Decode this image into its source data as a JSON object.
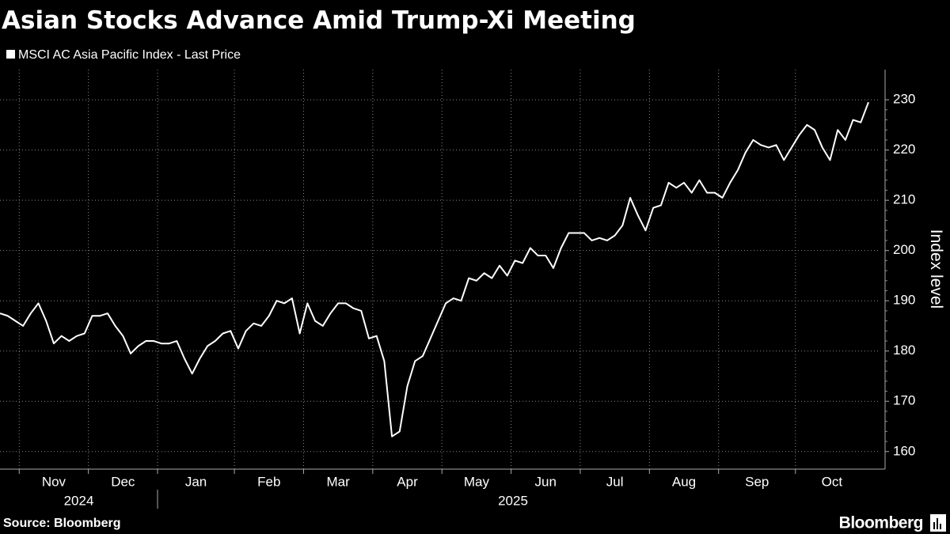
{
  "chart_data": {
    "type": "line",
    "title": "Asian Stocks Advance Amid Trump-Xi Meeting",
    "y_label": "Index level",
    "source": "Source: Bloomberg",
    "brand": "Bloomberg",
    "legend": true,
    "grid": true,
    "ylim": [
      156.5,
      236
    ],
    "yticks": [
      160,
      170,
      180,
      190,
      200,
      210,
      220,
      230
    ],
    "xticks": [
      {
        "value": "2024-11",
        "label": "Nov"
      },
      {
        "value": "2024-12",
        "label": "Dec"
      },
      {
        "value": "2025-01",
        "label": "Jan"
      },
      {
        "value": "2025-02",
        "label": "Feb"
      },
      {
        "value": "2025-03",
        "label": "Mar"
      },
      {
        "value": "2025-04",
        "label": "Apr"
      },
      {
        "value": "2025-05",
        "label": "May"
      },
      {
        "value": "2025-06",
        "label": "Jun"
      },
      {
        "value": "2025-07",
        "label": "Jul"
      },
      {
        "value": "2025-08",
        "label": "Aug"
      },
      {
        "value": "2025-09",
        "label": "Sep"
      },
      {
        "value": "2025-10",
        "label": "Oct"
      }
    ],
    "x_groups": [
      "2024",
      "2025"
    ],
    "x": [
      "2024-10",
      "2024-10",
      "2024-10",
      "2024-11",
      "2024-11",
      "2024-11",
      "2024-11",
      "2024-11",
      "2024-11",
      "2024-11",
      "2024-11",
      "2024-11",
      "2024-12",
      "2024-12",
      "2024-12",
      "2024-12",
      "2024-12",
      "2024-12",
      "2024-12",
      "2024-12",
      "2024-12",
      "2025-01",
      "2025-01",
      "2025-01",
      "2025-01",
      "2025-01",
      "2025-01",
      "2025-01",
      "2025-01",
      "2025-01",
      "2025-01",
      "2025-02",
      "2025-02",
      "2025-02",
      "2025-02",
      "2025-02",
      "2025-02",
      "2025-02",
      "2025-02",
      "2025-02",
      "2025-03",
      "2025-03",
      "2025-03",
      "2025-03",
      "2025-03",
      "2025-03",
      "2025-03",
      "2025-03",
      "2025-03",
      "2025-04",
      "2025-04",
      "2025-04",
      "2025-04",
      "2025-04",
      "2025-04",
      "2025-04",
      "2025-04",
      "2025-04",
      "2025-05",
      "2025-05",
      "2025-05",
      "2025-05",
      "2025-05",
      "2025-05",
      "2025-05",
      "2025-05",
      "2025-05",
      "2025-06",
      "2025-06",
      "2025-06",
      "2025-06",
      "2025-06",
      "2025-06",
      "2025-06",
      "2025-06",
      "2025-06",
      "2025-07",
      "2025-07",
      "2025-07",
      "2025-07",
      "2025-07",
      "2025-07",
      "2025-07",
      "2025-07",
      "2025-07",
      "2025-08",
      "2025-08",
      "2025-08",
      "2025-08",
      "2025-08",
      "2025-08",
      "2025-08",
      "2025-08",
      "2025-08",
      "2025-09",
      "2025-09",
      "2025-09",
      "2025-09",
      "2025-09",
      "2025-09",
      "2025-09",
      "2025-09",
      "2025-09",
      "2025-09",
      "2025-10",
      "2025-10",
      "2025-10",
      "2025-10",
      "2025-10",
      "2025-10",
      "2025-10",
      "2025-10",
      "2025-10",
      "2025-10"
    ],
    "series": [
      {
        "name": "MSCI AC Asia Pacific Index - Last Price",
        "color": "#ffffff",
        "values": [
          187.5,
          187,
          186,
          185,
          187.5,
          189.5,
          186,
          181.5,
          183,
          182,
          183,
          183.5,
          187,
          187,
          187.5,
          185,
          183,
          179.5,
          181,
          182,
          182,
          181.5,
          181.5,
          182,
          178.5,
          175.5,
          178.5,
          181,
          182,
          183.5,
          184,
          180.5,
          184,
          185.5,
          185,
          187,
          190,
          189.5,
          190.5,
          183.5,
          189.5,
          186,
          185,
          187.5,
          189.5,
          189.5,
          188.5,
          188,
          182.5,
          183,
          178,
          163,
          164,
          173,
          178,
          179,
          182.5,
          186,
          189.5,
          190.5,
          190,
          194.5,
          194,
          195.5,
          194.5,
          197,
          195,
          198,
          197.5,
          200.5,
          199,
          199,
          196.5,
          200.5,
          203.5,
          203.5,
          203.5,
          202,
          202.5,
          202,
          203,
          205,
          210.5,
          207,
          204,
          208.5,
          209,
          213.5,
          212.5,
          213.5,
          211.5,
          214,
          211.5,
          211.5,
          210.5,
          213.5,
          216,
          219.5,
          222,
          221,
          220.5,
          221,
          218,
          220.5,
          223,
          225,
          224,
          220.5,
          218,
          224,
          222,
          226,
          225.5,
          229.5
        ]
      }
    ]
  }
}
